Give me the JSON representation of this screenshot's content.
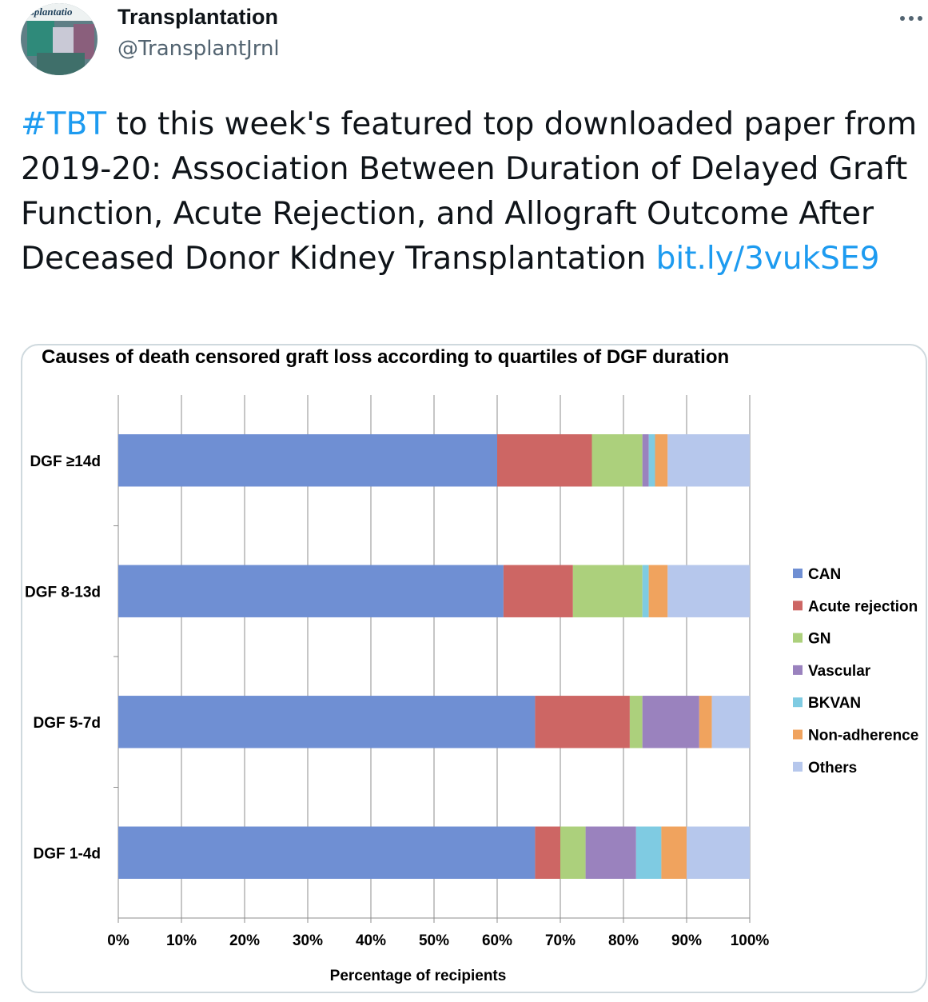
{
  "account": {
    "name": "Transplantation",
    "handle": "@TransplantJrnl",
    "avatar_text": "ansplantatio"
  },
  "more_icon": "more-horizontal-icon",
  "tweet": {
    "hashtag": "#TBT",
    "body": " to this week's featured top downloaded paper from 2019-20: Association Between Duration of Delayed Graft Function, Acute Rejection, and Allograft Outcome After Deceased Donor Kidney Transplantation ",
    "link": "bit.ly/3vukSE9"
  },
  "colors": {
    "link": "#1d9bf0",
    "secondary_text": "#536471"
  },
  "chart_data": {
    "type": "bar",
    "orientation": "horizontal",
    "stacked": "percent",
    "title": "Causes of death censored graft loss according to quartiles of DGF duration",
    "xlabel": "Percentage of recipients",
    "ylabel": "",
    "xlim": [
      0,
      100
    ],
    "x_ticks": [
      "0%",
      "10%",
      "20%",
      "30%",
      "40%",
      "50%",
      "60%",
      "70%",
      "80%",
      "90%",
      "100%"
    ],
    "grid": "vertical",
    "legend_position": "right",
    "categories": [
      "DGF ≥14d",
      "DGF 8-13d",
      "DGF 5-7d",
      "DGF 1-4d"
    ],
    "series": [
      {
        "name": "CAN",
        "color": "#6f8fd3",
        "values": [
          60,
          61,
          66,
          66
        ]
      },
      {
        "name": "Acute rejection",
        "color": "#cd6664",
        "values": [
          15,
          11,
          15,
          4
        ]
      },
      {
        "name": "GN",
        "color": "#acd07c",
        "values": [
          8,
          11,
          2,
          4
        ]
      },
      {
        "name": "Vascular",
        "color": "#9a82be",
        "values": [
          1,
          0,
          9,
          8
        ]
      },
      {
        "name": "BKVAN",
        "color": "#7fcbe2",
        "values": [
          1,
          1,
          0,
          4
        ]
      },
      {
        "name": "Non-adherence",
        "color": "#f0a35e",
        "values": [
          2,
          3,
          2,
          4
        ]
      },
      {
        "name": "Others",
        "color": "#b6c7ec",
        "values": [
          13,
          13,
          6,
          10
        ]
      }
    ]
  }
}
